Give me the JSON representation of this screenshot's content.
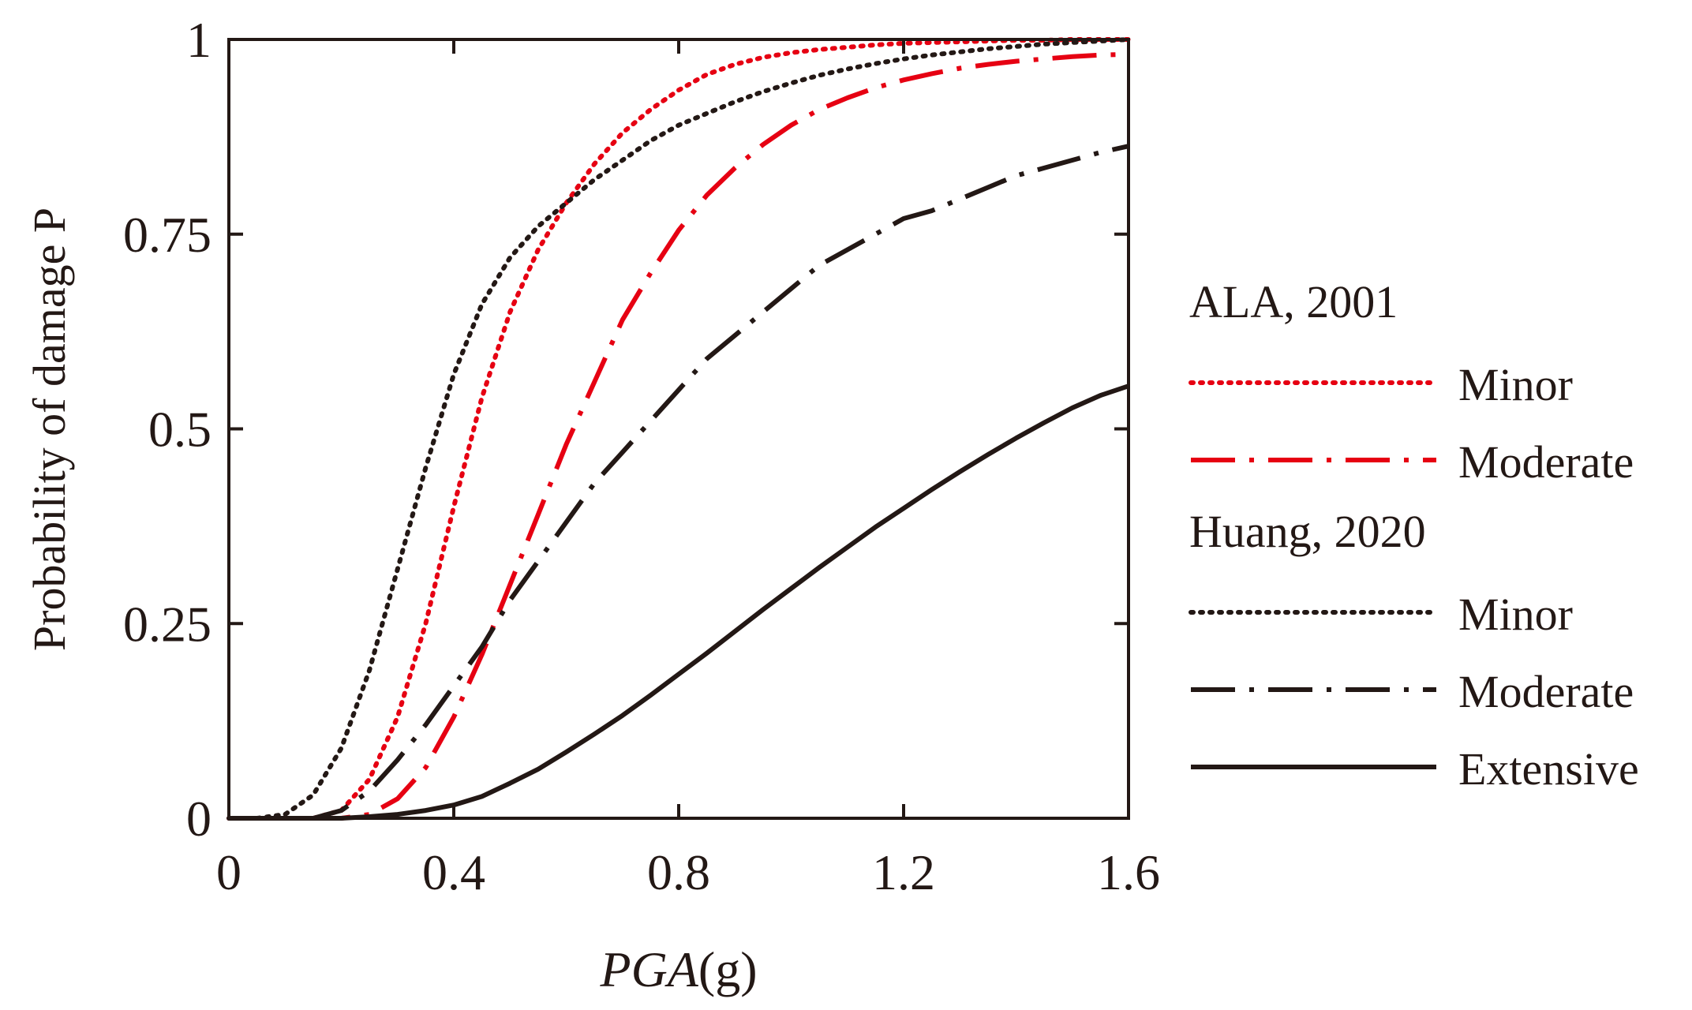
{
  "chart_data": {
    "type": "line",
    "xlabel": "PGA",
    "xlabel_unit": "(g)",
    "ylabel": "Probability of damage  P",
    "xlim": [
      0,
      1.6
    ],
    "ylim": [
      0,
      1
    ],
    "xticks": [
      0,
      0.4,
      0.8,
      1.2,
      1.6
    ],
    "xtick_labels": [
      "0",
      "0.4",
      "0.8",
      "1.2",
      "1.6"
    ],
    "yticks": [
      0,
      0.25,
      0.5,
      0.75,
      1
    ],
    "ytick_labels": [
      "0",
      "0.25",
      "0.5",
      "0.75",
      "1"
    ],
    "x": [
      0,
      0.05,
      0.1,
      0.15,
      0.2,
      0.25,
      0.3,
      0.35,
      0.4,
      0.45,
      0.5,
      0.55,
      0.6,
      0.65,
      0.7,
      0.75,
      0.8,
      0.85,
      0.9,
      0.95,
      1.0,
      1.05,
      1.1,
      1.15,
      1.2,
      1.25,
      1.3,
      1.35,
      1.4,
      1.45,
      1.5,
      1.55,
      1.6
    ],
    "series": [
      {
        "name": "ALA, 2001 Minor",
        "group": "ALA, 2001",
        "label": "Minor",
        "color": "#e60012",
        "dash": "dotted",
        "values": [
          0,
          0,
          0,
          0,
          0.01,
          0.05,
          0.13,
          0.25,
          0.4,
          0.54,
          0.65,
          0.73,
          0.79,
          0.84,
          0.88,
          0.91,
          0.935,
          0.955,
          0.968,
          0.977,
          0.983,
          0.987,
          0.99,
          0.993,
          0.995,
          0.996,
          0.997,
          0.998,
          0.999,
          0.999,
          1,
          1,
          1
        ]
      },
      {
        "name": "ALA, 2001 Moderate",
        "group": "ALA, 2001",
        "label": "Moderate",
        "color": "#e60012",
        "dash": "dashdot",
        "values": [
          0,
          0,
          0,
          0,
          0,
          0.005,
          0.025,
          0.065,
          0.13,
          0.21,
          0.3,
          0.39,
          0.48,
          0.56,
          0.64,
          0.7,
          0.755,
          0.8,
          0.835,
          0.865,
          0.89,
          0.91,
          0.925,
          0.938,
          0.948,
          0.956,
          0.963,
          0.968,
          0.972,
          0.975,
          0.978,
          0.98,
          0.981
        ]
      },
      {
        "name": "Huang, 2020 Minor",
        "group": "Huang, 2020",
        "label": "Minor",
        "color": "#231815",
        "dash": "dotted",
        "values": [
          0,
          0,
          0.005,
          0.03,
          0.09,
          0.19,
          0.32,
          0.45,
          0.57,
          0.66,
          0.72,
          0.76,
          0.79,
          0.82,
          0.845,
          0.87,
          0.89,
          0.905,
          0.92,
          0.933,
          0.944,
          0.954,
          0.962,
          0.969,
          0.975,
          0.98,
          0.984,
          0.988,
          0.991,
          0.994,
          0.996,
          0.998,
          1
        ]
      },
      {
        "name": "Huang, 2020 Moderate",
        "group": "Huang, 2020",
        "label": "Moderate",
        "color": "#231815",
        "dash": "dashdot",
        "values": [
          0,
          0,
          0,
          0,
          0.01,
          0.035,
          0.075,
          0.12,
          0.17,
          0.22,
          0.28,
          0.33,
          0.38,
          0.43,
          0.47,
          0.51,
          0.55,
          0.59,
          0.62,
          0.65,
          0.68,
          0.71,
          0.73,
          0.75,
          0.77,
          0.78,
          0.795,
          0.81,
          0.825,
          0.835,
          0.845,
          0.855,
          0.863
        ]
      },
      {
        "name": "Huang, 2020 Extensive",
        "group": "Huang, 2020",
        "label": "Extensive",
        "color": "#231815",
        "dash": "solid",
        "values": [
          0,
          0,
          0,
          0,
          0,
          0.002,
          0.005,
          0.01,
          0.017,
          0.028,
          0.045,
          0.063,
          0.085,
          0.108,
          0.132,
          0.158,
          0.185,
          0.212,
          0.24,
          0.268,
          0.295,
          0.322,
          0.348,
          0.374,
          0.398,
          0.422,
          0.445,
          0.467,
          0.488,
          0.508,
          0.527,
          0.543,
          0.555
        ]
      }
    ],
    "legend": {
      "placement": "right",
      "groups": [
        {
          "title": "ALA, 2001",
          "entries": [
            0,
            1
          ]
        },
        {
          "title": "Huang, 2020",
          "entries": [
            2,
            3,
            4
          ]
        }
      ]
    }
  }
}
